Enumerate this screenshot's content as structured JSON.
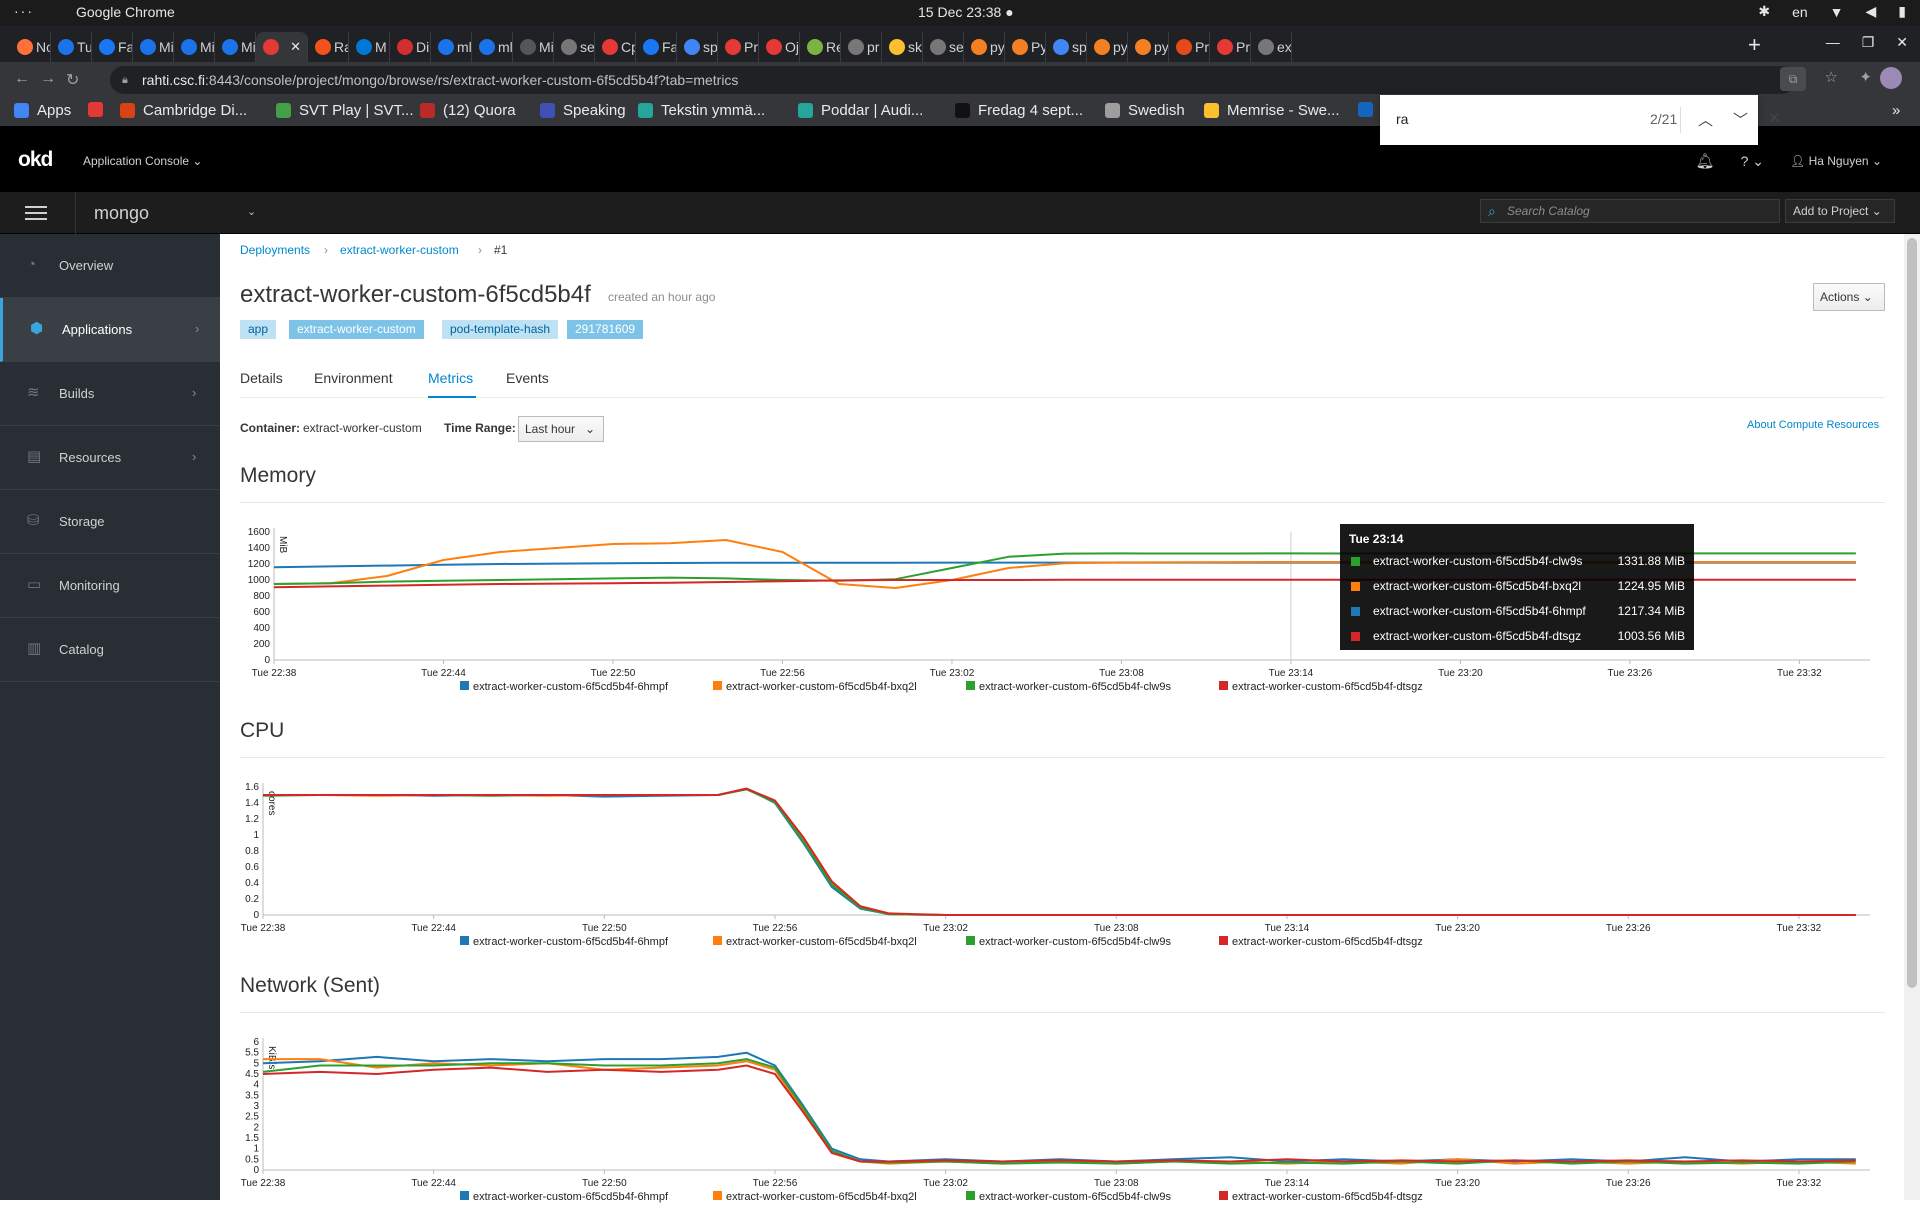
{
  "os": {
    "dots": "···",
    "app_name": "Google Chrome",
    "clock": "15 Dec  23:38",
    "lang": "en"
  },
  "tabs": [
    {
      "label": "Nc",
      "color": "#ff7139"
    },
    {
      "label": "Tu",
      "color": "#1a73e8"
    },
    {
      "label": "Fa",
      "color": "#1877f2"
    },
    {
      "label": "Mi",
      "color": "#1a73e8"
    },
    {
      "label": "Mi",
      "color": "#1a73e8"
    },
    {
      "label": "Mi",
      "color": "#1a73e8"
    },
    {
      "label": "",
      "color": "#e53935"
    },
    {
      "label": "Ra",
      "color": "#f4511e"
    },
    {
      "label": "M",
      "color": "#0078d4"
    },
    {
      "label": "Di",
      "color": "#d32f2f"
    },
    {
      "label": "ml",
      "color": "#1a73e8"
    },
    {
      "label": "ml",
      "color": "#1a73e8"
    },
    {
      "label": "Mi",
      "color": "#555"
    },
    {
      "label": "se",
      "color": "#777"
    },
    {
      "label": "Cp",
      "color": "#e53935"
    },
    {
      "label": "Fa",
      "color": "#1877f2"
    },
    {
      "label": "sp",
      "color": "#4285f4"
    },
    {
      "label": "Pr",
      "color": "#e53935"
    },
    {
      "label": "Oj",
      "color": "#e53935"
    },
    {
      "label": "Re",
      "color": "#7cb342"
    },
    {
      "label": "pr",
      "color": "#777"
    },
    {
      "label": "sk",
      "color": "#fbc02d"
    },
    {
      "label": "se",
      "color": "#777"
    },
    {
      "label": "py",
      "color": "#f48024"
    },
    {
      "label": "Py",
      "color": "#f48024"
    },
    {
      "label": "sp",
      "color": "#4285f4"
    },
    {
      "label": "py",
      "color": "#f48024"
    },
    {
      "label": "py",
      "color": "#f48024"
    },
    {
      "label": "Pr",
      "color": "#e64a19"
    },
    {
      "label": "Pr",
      "color": "#e53935"
    },
    {
      "label": "ex",
      "color": "#777"
    }
  ],
  "address": {
    "host": "rahti.csc.fi",
    "rest": ":8443/console/project/mongo/browse/rs/extract-worker-custom-6f5cd5b4f?tab=metrics"
  },
  "bookmarks": [
    {
      "label": "Apps",
      "color": "#4285f4"
    },
    {
      "label": "",
      "color": "#e53935"
    },
    {
      "label": "Cambridge Di...",
      "color": "#d84315"
    },
    {
      "label": "SVT Play | SVT...",
      "color": "#43a047"
    },
    {
      "label": "(12) Quora",
      "color": "#b92b27"
    },
    {
      "label": "Speaking",
      "color": "#3f51b5"
    },
    {
      "label": "Tekstin ymmä...",
      "color": "#26a69a"
    },
    {
      "label": "Poddar | Audi...",
      "color": "#26a69a"
    },
    {
      "label": "Fredag 4 sept...",
      "color": "#111"
    },
    {
      "label": "Swedish",
      "color": "#9e9e9e"
    },
    {
      "label": "Memrise - Swe...",
      "color": "#fbc02d"
    },
    {
      "label": "",
      "color": "#1565c0"
    }
  ],
  "find": {
    "query": "ra",
    "count": "2/21"
  },
  "okd": {
    "logo": "okd",
    "app_console": "Application Console",
    "user": "Ha Nguyen"
  },
  "project": {
    "name": "mongo",
    "search_placeholder": "Search Catalog",
    "add_to_project": "Add to Project"
  },
  "sidebar": {
    "items": [
      {
        "label": "Overview",
        "icon": "dashboard-icon"
      },
      {
        "label": "Applications",
        "icon": "cubes-icon"
      },
      {
        "label": "Builds",
        "icon": "layers-icon"
      },
      {
        "label": "Resources",
        "icon": "clipboard-icon"
      },
      {
        "label": "Storage",
        "icon": "database-icon"
      },
      {
        "label": "Monitoring",
        "icon": "monitor-icon"
      },
      {
        "label": "Catalog",
        "icon": "book-icon"
      }
    ]
  },
  "breadcrumb": {
    "deployments": "Deployments",
    "deployment": "extract-worker-custom",
    "current": "#1"
  },
  "page": {
    "title": "extract-worker-custom-6f5cd5b4f",
    "created": "created an hour ago",
    "actions": "Actions",
    "labels": [
      {
        "key": "app",
        "value": "extract-worker-custom"
      },
      {
        "key": "pod-template-hash",
        "value": "291781609"
      }
    ],
    "tabs": [
      "Details",
      "Environment",
      "Metrics",
      "Events"
    ],
    "container_label": "Container:",
    "container_value": "extract-worker-custom",
    "time_range_label": "Time Range:",
    "time_range_value": "Last hour",
    "about_link": "About Compute Resources"
  },
  "chart_data": [
    {
      "type": "line",
      "title": "Memory",
      "ylabel": "MiB",
      "ylim": [
        0,
        1600
      ],
      "yticks": [
        0,
        200,
        400,
        600,
        800,
        1000,
        1200,
        1400,
        1600
      ],
      "x_ticks": [
        "Tue 22:38",
        "Tue 22:44",
        "Tue 22:50",
        "Tue 22:56",
        "Tue 23:02",
        "Tue 23:08",
        "Tue 23:14",
        "Tue 23:20",
        "Tue 23:26",
        "Tue 23:32"
      ],
      "x": [
        0,
        2,
        4,
        6,
        8,
        10,
        12,
        14,
        16,
        18,
        20,
        22,
        24,
        26,
        28,
        30,
        32,
        34,
        36,
        38,
        40,
        42,
        44,
        46,
        48,
        50,
        52,
        54,
        56
      ],
      "series": [
        {
          "name": "extract-worker-custom-6f5cd5b4f-6hmpf",
          "color": "#1f77b4",
          "values": [
            1160,
            1170,
            1180,
            1190,
            1200,
            1205,
            1210,
            1212,
            1215,
            1215,
            1216,
            1216,
            1217,
            1217,
            1217,
            1217,
            1217,
            1217,
            1217,
            1217,
            1217,
            1217,
            1217,
            1217,
            1217,
            1217,
            1217,
            1217,
            1217
          ]
        },
        {
          "name": "extract-worker-custom-6f5cd5b4f-bxq2l",
          "color": "#ff7f0e",
          "values": [
            950,
            960,
            1050,
            1250,
            1350,
            1400,
            1450,
            1460,
            1500,
            1350,
            950,
            900,
            1000,
            1150,
            1210,
            1220,
            1222,
            1224,
            1225,
            1225,
            1225,
            1225,
            1225,
            1225,
            1225,
            1225,
            1225,
            1225,
            1225
          ]
        },
        {
          "name": "extract-worker-custom-6f5cd5b4f-clw9s",
          "color": "#2ca02c",
          "values": [
            950,
            960,
            980,
            990,
            1000,
            1010,
            1020,
            1030,
            1020,
            1000,
            990,
            1010,
            1150,
            1290,
            1330,
            1332,
            1331,
            1331,
            1332,
            1331,
            1332,
            1331,
            1332,
            1332,
            1332,
            1332,
            1332,
            1332,
            1332
          ]
        },
        {
          "name": "extract-worker-custom-6f5cd5b4f-dtsgz",
          "color": "#d62728",
          "values": [
            910,
            920,
            930,
            940,
            950,
            955,
            960,
            965,
            975,
            985,
            995,
            1000,
            1000,
            1000,
            1002,
            1003,
            1003,
            1003,
            1003,
            1004,
            1004,
            1004,
            1004,
            1004,
            1004,
            1004,
            1004,
            1004,
            1004
          ]
        }
      ],
      "tooltip": {
        "time": "Tue 23:14",
        "rows": [
          {
            "name": "extract-worker-custom-6f5cd5b4f-clw9s",
            "value": "1331.88 MiB",
            "color": "#2ca02c"
          },
          {
            "name": "extract-worker-custom-6f5cd5b4f-bxq2l",
            "value": "1224.95 MiB",
            "color": "#ff7f0e"
          },
          {
            "name": "extract-worker-custom-6f5cd5b4f-6hmpf",
            "value": "1217.34 MiB",
            "color": "#1f77b4"
          },
          {
            "name": "extract-worker-custom-6f5cd5b4f-dtsgz",
            "value": "1003.56 MiB",
            "color": "#d62728"
          }
        ]
      }
    },
    {
      "type": "line",
      "title": "CPU",
      "ylabel": "cores",
      "ylim": [
        0,
        1.6
      ],
      "yticks": [
        0,
        0.2,
        0.4,
        0.6,
        0.8,
        1,
        1.2,
        1.4,
        1.6
      ],
      "x_ticks": [
        "Tue 22:38",
        "Tue 22:44",
        "Tue 22:50",
        "Tue 22:56",
        "Tue 23:02",
        "Tue 23:08",
        "Tue 23:14",
        "Tue 23:20",
        "Tue 23:26",
        "Tue 23:32"
      ],
      "x": [
        0,
        2,
        4,
        6,
        8,
        10,
        12,
        14,
        16,
        17,
        18,
        19,
        20,
        21,
        22,
        24,
        26,
        28,
        30,
        32,
        34,
        36,
        38,
        40,
        42,
        44,
        46,
        48,
        50,
        52,
        54,
        56
      ],
      "series": [
        {
          "name": "extract-worker-custom-6f5cd5b4f-6hmpf",
          "color": "#1f77b4",
          "values": [
            1.5,
            1.5,
            1.5,
            1.49,
            1.5,
            1.5,
            1.48,
            1.49,
            1.5,
            1.58,
            1.4,
            0.9,
            0.35,
            0.08,
            0.01,
            0,
            0,
            0,
            0,
            0,
            0,
            0,
            0,
            0,
            0,
            0,
            0,
            0,
            0,
            0,
            0,
            0
          ]
        },
        {
          "name": "extract-worker-custom-6f5cd5b4f-bxq2l",
          "color": "#ff7f0e",
          "values": [
            1.5,
            1.5,
            1.49,
            1.5,
            1.5,
            1.49,
            1.5,
            1.5,
            1.5,
            1.58,
            1.42,
            0.95,
            0.4,
            0.1,
            0.01,
            0,
            0,
            0,
            0,
            0,
            0,
            0,
            0,
            0,
            0,
            0,
            0,
            0,
            0,
            0,
            0,
            0
          ]
        },
        {
          "name": "extract-worker-custom-6f5cd5b4f-clw9s",
          "color": "#2ca02c",
          "values": [
            1.49,
            1.5,
            1.5,
            1.5,
            1.49,
            1.5,
            1.5,
            1.5,
            1.5,
            1.57,
            1.41,
            0.92,
            0.38,
            0.09,
            0.01,
            0,
            0,
            0,
            0,
            0,
            0,
            0,
            0,
            0,
            0,
            0,
            0,
            0,
            0,
            0,
            0,
            0
          ]
        },
        {
          "name": "extract-worker-custom-6f5cd5b4f-dtsgz",
          "color": "#d62728",
          "values": [
            1.5,
            1.5,
            1.5,
            1.5,
            1.5,
            1.5,
            1.5,
            1.5,
            1.5,
            1.58,
            1.43,
            0.97,
            0.42,
            0.11,
            0.02,
            0,
            0,
            0,
            0,
            0,
            0,
            0,
            0,
            0,
            0,
            0,
            0,
            0,
            0,
            0,
            0,
            0
          ]
        }
      ]
    },
    {
      "type": "line",
      "title": "Network (Sent)",
      "ylabel": "KiB/s",
      "ylim": [
        0,
        6
      ],
      "yticks": [
        0,
        0.5,
        1,
        1.5,
        2,
        2.5,
        3,
        3.5,
        4,
        4.5,
        5,
        5.5,
        6
      ],
      "x_ticks": [
        "Tue 22:38",
        "Tue 22:44",
        "Tue 22:50",
        "Tue 22:56",
        "Tue 23:02",
        "Tue 23:08",
        "Tue 23:14",
        "Tue 23:20",
        "Tue 23:26",
        "Tue 23:32"
      ],
      "x": [
        0,
        2,
        4,
        6,
        8,
        10,
        12,
        14,
        16,
        17,
        18,
        19,
        20,
        21,
        22,
        24,
        26,
        28,
        30,
        32,
        34,
        36,
        38,
        40,
        42,
        44,
        46,
        48,
        50,
        52,
        54,
        56
      ],
      "series": [
        {
          "name": "extract-worker-custom-6f5cd5b4f-6hmpf",
          "color": "#1f77b4",
          "values": [
            5.0,
            5.1,
            5.3,
            5.1,
            5.2,
            5.1,
            5.2,
            5.2,
            5.3,
            5.5,
            4.9,
            3.0,
            1.0,
            0.5,
            0.4,
            0.5,
            0.4,
            0.5,
            0.4,
            0.5,
            0.6,
            0.4,
            0.5,
            0.4,
            0.5,
            0.4,
            0.5,
            0.4,
            0.6,
            0.4,
            0.5,
            0.5
          ]
        },
        {
          "name": "extract-worker-custom-6f5cd5b4f-bxq2l",
          "color": "#ff7f0e",
          "values": [
            5.2,
            5.2,
            4.8,
            5.0,
            4.9,
            5.0,
            4.7,
            4.8,
            4.9,
            5.1,
            4.7,
            2.8,
            0.8,
            0.4,
            0.3,
            0.4,
            0.3,
            0.4,
            0.3,
            0.4,
            0.4,
            0.3,
            0.4,
            0.3,
            0.5,
            0.3,
            0.4,
            0.3,
            0.4,
            0.3,
            0.4,
            0.3
          ]
        },
        {
          "name": "extract-worker-custom-6f5cd5b4f-clw9s",
          "color": "#2ca02c",
          "values": [
            4.6,
            4.9,
            4.9,
            4.9,
            5.0,
            5.0,
            4.9,
            4.9,
            5.0,
            5.2,
            4.8,
            2.9,
            0.9,
            0.4,
            0.35,
            0.4,
            0.3,
            0.35,
            0.3,
            0.4,
            0.3,
            0.35,
            0.3,
            0.4,
            0.3,
            0.45,
            0.3,
            0.4,
            0.3,
            0.35,
            0.3,
            0.4
          ]
        },
        {
          "name": "extract-worker-custom-6f5cd5b4f-dtsgz",
          "color": "#d62728",
          "values": [
            4.5,
            4.6,
            4.5,
            4.7,
            4.8,
            4.6,
            4.7,
            4.6,
            4.7,
            4.9,
            4.5,
            2.7,
            0.8,
            0.4,
            0.4,
            0.45,
            0.4,
            0.45,
            0.4,
            0.45,
            0.4,
            0.5,
            0.4,
            0.45,
            0.4,
            0.45,
            0.4,
            0.45,
            0.4,
            0.45,
            0.4,
            0.45
          ]
        }
      ]
    }
  ]
}
